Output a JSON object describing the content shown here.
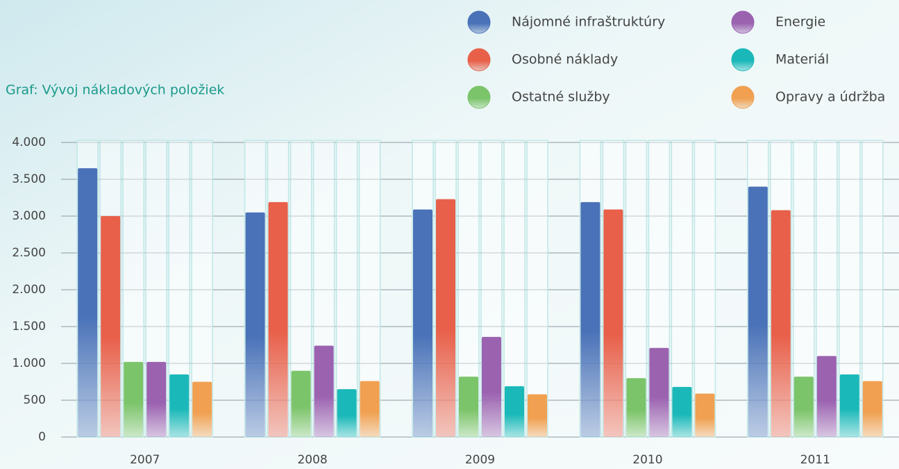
{
  "chart_data": {
    "type": "bar",
    "title": "Graf: Vývoj nákladových položiek",
    "categories": [
      "2007",
      "2008",
      "2009",
      "2010",
      "2011"
    ],
    "series": [
      {
        "name": "Nájomné infraštruktúry",
        "color": "#4a72b8",
        "values": [
          3650,
          3050,
          3090,
          3190,
          3400
        ]
      },
      {
        "name": "Osobné náklady",
        "color": "#e8604a",
        "values": [
          3000,
          3190,
          3230,
          3090,
          3080
        ]
      },
      {
        "name": "Ostatné služby",
        "color": "#7cc46a",
        "values": [
          1020,
          900,
          820,
          800,
          820
        ]
      },
      {
        "name": "Energie",
        "color": "#9b62b0",
        "values": [
          1020,
          1240,
          1360,
          1210,
          1100
        ]
      },
      {
        "name": "Materiál",
        "color": "#1ab8b8",
        "values": [
          850,
          650,
          690,
          680,
          850
        ]
      },
      {
        "name": "Opravy a údržba",
        "color": "#f0a050",
        "values": [
          750,
          760,
          580,
          590,
          760
        ]
      }
    ],
    "ylim": [
      0,
      4000
    ],
    "yticks": [
      0,
      500,
      {
        "value": 1000,
        "label": "1.000"
      },
      {
        "value": 1500,
        "label": "1.500"
      },
      {
        "value": 2000,
        "label": "2.000"
      },
      {
        "value": 2500,
        "label": "2.500"
      },
      {
        "value": 3000,
        "label": "3.000"
      },
      {
        "value": 3500,
        "label": "3.500"
      },
      {
        "value": 4000,
        "label": "4.000"
      }
    ],
    "grid": true
  }
}
